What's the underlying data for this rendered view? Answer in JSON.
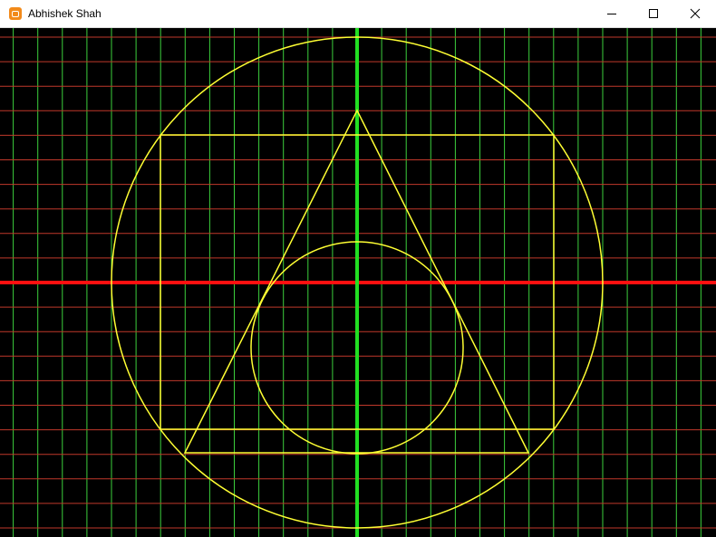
{
  "window": {
    "title": "Abhishek Shah",
    "icon": "app-icon"
  },
  "caption_buttons": {
    "minimize_icon": "minimize-icon",
    "maximize_icon": "maximize-icon",
    "close_icon": "close-icon"
  },
  "colors": {
    "background": "#000000",
    "grid_vertical": "#3ccf3c",
    "grid_horizontal": "#c0392b",
    "axis_vertical": "#22e022",
    "axis_horizontal": "#ff1010",
    "shapes": "#ffff33"
  },
  "drawing": {
    "shapes": [
      "outer-circle",
      "square",
      "triangle",
      "inner-circle"
    ]
  }
}
